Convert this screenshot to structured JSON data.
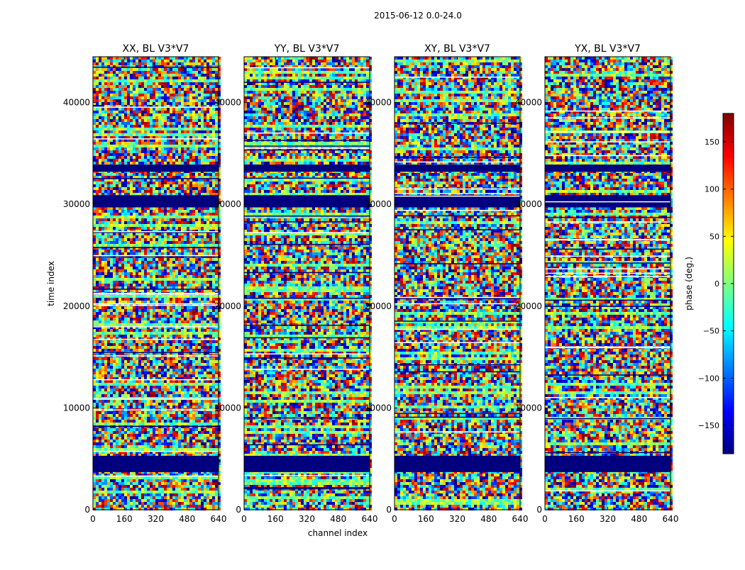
{
  "figure": {
    "suptitle": "2015-06-12 0.0-24.0",
    "xlabel": "channel index",
    "ylabel": "time index"
  },
  "colorbar": {
    "label": "phase (deg.)",
    "range": [
      -180,
      180
    ],
    "ticks": [
      -150,
      -100,
      -50,
      0,
      50,
      100,
      150
    ],
    "tick_labels": [
      "−150",
      "−100",
      "−50",
      "0",
      "50",
      "100",
      "150"
    ],
    "colormap": [
      "#00007f",
      "#0000ff",
      "#007fff",
      "#00ffff",
      "#7fff7f",
      "#ffff00",
      "#ff7f00",
      "#ff0000",
      "#7f0000"
    ]
  },
  "chart_data": [
    {
      "type": "heatmap",
      "title": "XX, BL V3*V7",
      "xlim": [
        0,
        640
      ],
      "ylim": [
        0,
        44500
      ],
      "xticks": [
        0,
        160,
        320,
        480,
        640
      ],
      "yticks": [
        0,
        10000,
        20000,
        30000,
        40000
      ],
      "value": "phase (deg.)",
      "flagged_time_ranges": [
        [
          3700,
          5300
        ],
        [
          29700,
          30900
        ],
        [
          33200,
          33900
        ]
      ]
    },
    {
      "type": "heatmap",
      "title": "YY, BL V3*V7",
      "xlim": [
        0,
        640
      ],
      "ylim": [
        0,
        44500
      ],
      "xticks": [
        0,
        160,
        320,
        480,
        640
      ],
      "yticks": [
        0,
        10000,
        20000,
        30000,
        40000
      ],
      "value": "phase (deg.)",
      "flagged_time_ranges": [
        [
          3700,
          5300
        ],
        [
          29700,
          30900
        ],
        [
          33200,
          33900
        ]
      ]
    },
    {
      "type": "heatmap",
      "title": "XY, BL V3*V7",
      "xlim": [
        0,
        640
      ],
      "ylim": [
        0,
        44500
      ],
      "xticks": [
        0,
        160,
        320,
        480,
        640
      ],
      "yticks": [
        0,
        10000,
        20000,
        30000,
        40000
      ],
      "value": "phase (deg.)",
      "flagged_time_ranges": [
        [
          3700,
          5300
        ],
        [
          29700,
          30900
        ],
        [
          33200,
          33900
        ]
      ]
    },
    {
      "type": "heatmap",
      "title": "YX, BL V3*V7",
      "xlim": [
        0,
        640
      ],
      "ylim": [
        0,
        44500
      ],
      "xticks": [
        0,
        160,
        320,
        480,
        640
      ],
      "yticks": [
        0,
        10000,
        20000,
        30000,
        40000
      ],
      "value": "phase (deg.)",
      "flagged_time_ranges": [
        [
          3700,
          5300
        ],
        [
          29700,
          30900
        ],
        [
          33200,
          33900
        ]
      ]
    }
  ]
}
